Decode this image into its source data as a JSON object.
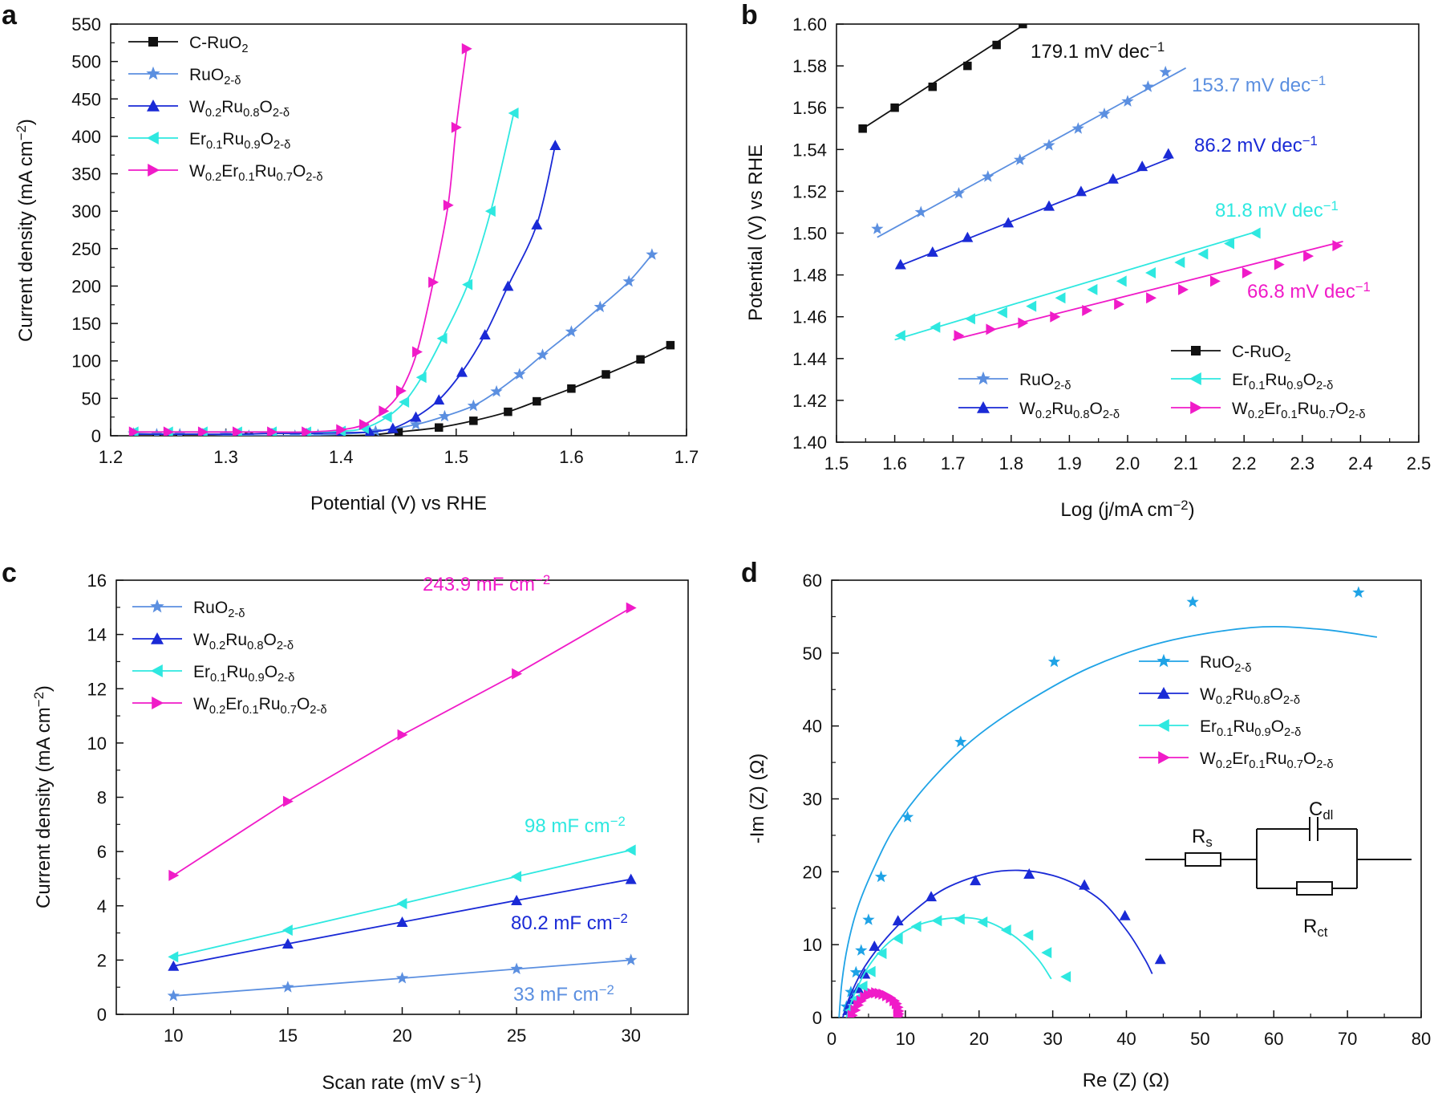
{
  "panel_labels": [
    "a",
    "b",
    "c",
    "d"
  ],
  "colors": {
    "C-RuO2": "#111111",
    "RuO2": "#5b8fe0",
    "W0.2Ru0.8": "#1a2ad6",
    "Er0.1Ru0.9": "#2ee8e0",
    "W0.2Er0.1Ru0.7": "#f01bc8"
  },
  "legend_names": {
    "C-RuO2": "C-RuO2",
    "RuO2": "RuO2-δ",
    "W0.2Ru0.8": "W0.2Ru0.8O2-δ",
    "Er0.1Ru0.9": "Er0.1Ru0.9O2-δ",
    "W0.2Er0.1Ru0.7": "W0.2Er0.1Ru0.7O2-δ"
  },
  "chart_data": [
    {
      "id": "a",
      "type": "line",
      "xlabel": "Potential (V) vs RHE",
      "ylabel": "Current density (mA cm−2)",
      "xlim": [
        1.2,
        1.7
      ],
      "ylim": [
        0,
        550
      ],
      "xticks": [
        "1.2",
        "1.3",
        "1.4",
        "1.5",
        "1.6",
        "1.7"
      ],
      "yticks": [
        "0",
        "50",
        "100",
        "150",
        "200",
        "250",
        "300",
        "350",
        "400",
        "450",
        "500",
        "550"
      ],
      "series": [
        {
          "key": "C-RuO2",
          "marker": "square",
          "x": [
            1.22,
            1.24,
            1.26,
            1.28,
            1.3,
            1.32,
            1.34,
            1.36,
            1.38,
            1.4,
            1.425,
            1.45,
            1.485,
            1.515,
            1.545,
            1.57,
            1.6,
            1.63,
            1.66,
            1.686
          ],
          "y": [
            0,
            -1,
            -1,
            -2,
            -2,
            -1,
            -2,
            -3,
            -1,
            0,
            1,
            5,
            11,
            20,
            32,
            46,
            63,
            82,
            102,
            121
          ]
        },
        {
          "key": "RuO2",
          "marker": "star",
          "x": [
            1.22,
            1.24,
            1.26,
            1.28,
            1.3,
            1.32,
            1.34,
            1.36,
            1.38,
            1.4,
            1.43,
            1.465,
            1.49,
            1.515,
            1.535,
            1.555,
            1.575,
            1.6,
            1.625,
            1.65,
            1.67
          ],
          "y": [
            3,
            2,
            2,
            2,
            1,
            0,
            0,
            0,
            1,
            2,
            6,
            15,
            26,
            40,
            59,
            82,
            108,
            139,
            172,
            206,
            242
          ]
        },
        {
          "key": "W0.2Ru0.8",
          "marker": "tri-up",
          "x": [
            1.22,
            1.25,
            1.28,
            1.31,
            1.34,
            1.37,
            1.4,
            1.425,
            1.445,
            1.465,
            1.485,
            1.505,
            1.525,
            1.545,
            1.57,
            1.586
          ],
          "y": [
            2,
            2,
            2,
            2,
            3,
            3,
            4,
            5,
            10,
            25,
            48,
            85,
            135,
            200,
            282,
            388
          ]
        },
        {
          "key": "Er0.1Ru0.9",
          "marker": "tri-left",
          "x": [
            1.22,
            1.25,
            1.28,
            1.31,
            1.34,
            1.37,
            1.4,
            1.42,
            1.44,
            1.455,
            1.47,
            1.488,
            1.51,
            1.53,
            1.55
          ],
          "y": [
            5,
            5,
            5,
            5,
            5,
            5,
            6,
            10,
            25,
            45,
            78,
            130,
            202,
            300,
            431
          ]
        },
        {
          "key": "W0.2Er0.1Ru0.7",
          "marker": "tri-right",
          "x": [
            1.22,
            1.25,
            1.28,
            1.31,
            1.34,
            1.37,
            1.4,
            1.42,
            1.437,
            1.452,
            1.466,
            1.48,
            1.493,
            1.5,
            1.509
          ],
          "y": [
            5,
            5,
            5,
            5,
            5,
            5,
            8,
            15,
            33,
            60,
            112,
            205,
            308,
            412,
            517
          ]
        }
      ]
    },
    {
      "id": "b",
      "type": "line",
      "xlabel": "Log (j/mA cm−2)",
      "ylabel": "Potential (V) vs RHE",
      "xlim": [
        1.5,
        2.5
      ],
      "ylim": [
        1.4,
        1.6
      ],
      "xticks": [
        "1.5",
        "1.6",
        "1.7",
        "1.8",
        "1.9",
        "2.0",
        "2.1",
        "2.2",
        "2.3",
        "2.4",
        "2.5"
      ],
      "yticks": [
        "1.40",
        "1.42",
        "1.44",
        "1.46",
        "1.48",
        "1.50",
        "1.52",
        "1.54",
        "1.56",
        "1.58",
        "1.60"
      ],
      "annotations": [
        "179.1 mV dec−1",
        "153.7 mV dec−1",
        "86.2 mV dec−1",
        "81.8 mV dec−1",
        "66.8 mV dec−1"
      ],
      "series": [
        {
          "key": "C-RuO2",
          "marker": "square",
          "x": [
            1.545,
            1.6,
            1.665,
            1.725,
            1.775,
            1.82
          ],
          "y": [
            1.55,
            1.56,
            1.57,
            1.58,
            1.59,
            1.6
          ],
          "fit": [
            [
              1.545,
              1.55
            ],
            [
              1.835,
              1.602
            ]
          ]
        },
        {
          "key": "RuO2",
          "marker": "star",
          "x": [
            1.57,
            1.645,
            1.71,
            1.76,
            1.815,
            1.865,
            1.915,
            1.96,
            2.0,
            2.035,
            2.065
          ],
          "y": [
            1.502,
            1.51,
            1.519,
            1.527,
            1.535,
            1.542,
            1.55,
            1.557,
            1.563,
            1.57,
            1.577
          ],
          "fit": [
            [
              1.57,
              1.498
            ],
            [
              2.1,
              1.579
            ]
          ]
        },
        {
          "key": "W0.2Ru0.8",
          "marker": "tri-up",
          "x": [
            1.61,
            1.665,
            1.725,
            1.795,
            1.865,
            1.92,
            1.975,
            2.025,
            2.07
          ],
          "y": [
            1.485,
            1.491,
            1.498,
            1.505,
            1.513,
            1.52,
            1.526,
            1.532,
            1.538
          ],
          "fit": [
            [
              1.605,
              1.484
            ],
            [
              2.075,
              1.536
            ]
          ]
        },
        {
          "key": "Er0.1Ru0.9",
          "marker": "tri-left",
          "x": [
            1.61,
            1.67,
            1.73,
            1.785,
            1.835,
            1.885,
            1.94,
            1.99,
            2.04,
            2.09,
            2.13,
            2.175,
            2.22
          ],
          "y": [
            1.451,
            1.455,
            1.459,
            1.462,
            1.465,
            1.469,
            1.473,
            1.477,
            1.481,
            1.486,
            1.49,
            1.495,
            1.5
          ],
          "fit": [
            [
              1.6,
              1.449
            ],
            [
              2.225,
              1.501
            ]
          ]
        },
        {
          "key": "W0.2Er0.1Ru0.7",
          "marker": "tri-right",
          "x": [
            1.71,
            1.765,
            1.82,
            1.875,
            1.93,
            1.985,
            2.04,
            2.095,
            2.15,
            2.205,
            2.26,
            2.31,
            2.36
          ],
          "y": [
            1.451,
            1.454,
            1.457,
            1.46,
            1.463,
            1.466,
            1.469,
            1.473,
            1.477,
            1.481,
            1.485,
            1.489,
            1.494
          ],
          "fit": [
            [
              1.7,
              1.449
            ],
            [
              2.37,
              1.496
            ]
          ]
        }
      ]
    },
    {
      "id": "c",
      "type": "line",
      "xlabel": "Scan rate (mV s−1)",
      "ylabel": "Current density (mA cm−2)",
      "xlim": [
        7.5,
        32.5
      ],
      "ylim": [
        0,
        16
      ],
      "xticks": [
        "10",
        "15",
        "20",
        "25",
        "30"
      ],
      "yticks": [
        "0",
        "2",
        "4",
        "6",
        "8",
        "10",
        "12",
        "14",
        "16"
      ],
      "annotations": [
        "243.9 mF cm−2",
        "98 mF cm−2",
        "80.2 mF cm−2",
        "33 mF cm−2"
      ],
      "series": [
        {
          "key": "RuO2",
          "marker": "star",
          "x": [
            10,
            15,
            20,
            25,
            30
          ],
          "y": [
            0.68,
            1.0,
            1.33,
            1.67,
            2.0
          ]
        },
        {
          "key": "W0.2Ru0.8",
          "marker": "tri-up",
          "x": [
            10,
            15,
            20,
            25,
            30
          ],
          "y": [
            1.78,
            2.6,
            3.4,
            4.2,
            4.98
          ]
        },
        {
          "key": "Er0.1Ru0.9",
          "marker": "tri-left",
          "x": [
            10,
            15,
            20,
            25,
            30
          ],
          "y": [
            2.12,
            3.1,
            4.08,
            5.08,
            6.05
          ]
        },
        {
          "key": "W0.2Er0.1Ru0.7",
          "marker": "tri-right",
          "x": [
            10,
            15,
            20,
            25,
            30
          ],
          "y": [
            5.12,
            7.85,
            10.3,
            12.55,
            14.98
          ]
        }
      ]
    },
    {
      "id": "d",
      "type": "scatter",
      "xlabel": "Re (Z) (Ω)",
      "ylabel": "-Im (Z) (Ω)",
      "xlim": [
        0,
        80
      ],
      "ylim": [
        0,
        60
      ],
      "xticks": [
        "0",
        "10",
        "20",
        "30",
        "40",
        "50",
        "60",
        "70",
        "80"
      ],
      "yticks": [
        "0",
        "10",
        "20",
        "30",
        "40",
        "50",
        "60"
      ],
      "circuit_labels": [
        "Rs",
        "Cdl",
        "Rct"
      ],
      "series": [
        {
          "key": "RuO2",
          "color": "#1fa3e6",
          "marker": "star",
          "x": [
            2.0,
            2.6,
            3.3,
            4.0,
            5.0,
            6.7,
            10.3,
            17.5,
            30.2,
            49.0,
            71.5
          ],
          "y": [
            1.5,
            3.5,
            6.2,
            9.2,
            13.4,
            19.3,
            27.5,
            37.8,
            48.8,
            57.0,
            58.3
          ],
          "fit": [
            [
              1.0,
              0.0
            ],
            [
              1.4,
              5.0
            ],
            [
              2.2,
              10.0
            ],
            [
              3.5,
              15.0
            ],
            [
              5.5,
              20.0
            ],
            [
              8.5,
              26.0
            ],
            [
              13.0,
              32.0
            ],
            [
              19.0,
              38.0
            ],
            [
              26.0,
              43.0
            ],
            [
              35.0,
              48.0
            ],
            [
              45.0,
              51.5
            ],
            [
              57.0,
              53.5
            ],
            [
              66.0,
              53.3
            ],
            [
              74.0,
              52.2
            ]
          ]
        },
        {
          "key": "W0.2Ru0.8",
          "marker": "tri-up",
          "x": [
            2.2,
            2.8,
            3.6,
            4.5,
            5.8,
            9.0,
            13.5,
            19.5,
            26.8,
            34.3,
            39.8,
            44.6
          ],
          "y": [
            1.0,
            2.5,
            4.0,
            6.0,
            9.8,
            13.3,
            16.6,
            18.8,
            19.7,
            18.2,
            14.0,
            8.0
          ],
          "fit": [
            [
              1.5,
              0.0
            ],
            [
              2.5,
              3.0
            ],
            [
              4.5,
              7.0
            ],
            [
              7.5,
              11.0
            ],
            [
              11.0,
              14.5
            ],
            [
              16.0,
              18.0
            ],
            [
              23.0,
              20.1
            ],
            [
              30.0,
              19.5
            ],
            [
              36.0,
              16.5
            ],
            [
              40.0,
              12.0
            ],
            [
              42.5,
              8.0
            ],
            [
              43.5,
              6.0
            ]
          ]
        },
        {
          "key": "Er0.1Ru0.9",
          "marker": "tri-left",
          "x": [
            2.5,
            3.2,
            4.2,
            5.3,
            6.8,
            9.0,
            11.5,
            14.3,
            17.4,
            20.5,
            23.7,
            26.7,
            29.2,
            31.8
          ],
          "y": [
            1.0,
            2.5,
            4.3,
            6.3,
            8.8,
            10.8,
            12.5,
            13.3,
            13.5,
            13.1,
            12.0,
            11.3,
            8.9,
            5.6
          ],
          "fit": [
            [
              2.0,
              0.0
            ],
            [
              3.0,
              3.0
            ],
            [
              5.0,
              7.0
            ],
            [
              8.0,
              10.5
            ],
            [
              12.0,
              12.8
            ],
            [
              17.0,
              13.7
            ],
            [
              21.0,
              13.2
            ],
            [
              25.0,
              11.0
            ],
            [
              28.0,
              8.0
            ],
            [
              29.8,
              5.3
            ]
          ]
        },
        {
          "key": "W0.2Er0.1Ru0.7",
          "marker": "tri-right",
          "x": [
            2.8,
            3.2,
            3.6,
            4.0,
            4.5,
            5.0,
            5.5,
            6.0,
            6.5,
            7.0,
            7.5,
            8.0,
            8.5,
            8.8,
            9.0,
            9.1,
            9.1,
            9.0
          ],
          "y": [
            0.3,
            1.0,
            1.7,
            2.3,
            2.8,
            3.1,
            3.3,
            3.4,
            3.3,
            3.2,
            3.0,
            2.7,
            2.3,
            1.9,
            1.4,
            0.9,
            0.5,
            0.2
          ],
          "fit": [
            [
              2.5,
              0.0
            ],
            [
              3.5,
              1.8
            ],
            [
              5.0,
              3.0
            ],
            [
              6.5,
              3.4
            ],
            [
              8.0,
              2.9
            ],
            [
              9.0,
              1.5
            ],
            [
              9.2,
              0.3
            ]
          ]
        }
      ]
    }
  ]
}
